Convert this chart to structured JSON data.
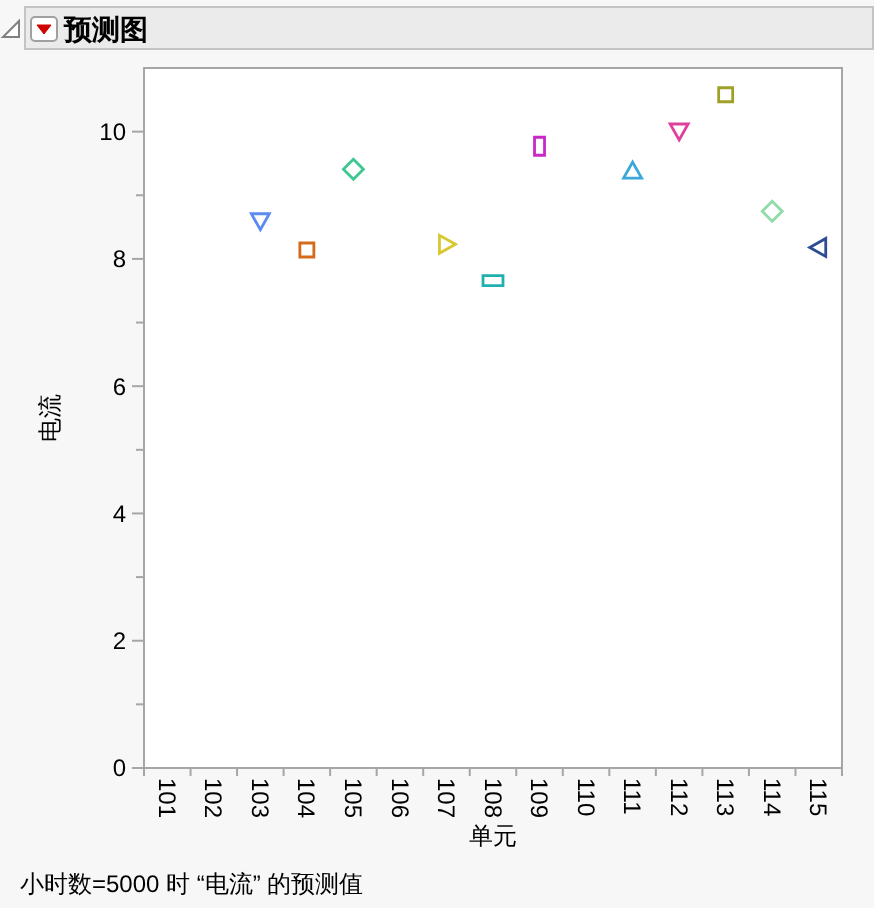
{
  "chart_data": {
    "type": "scatter",
    "title": "预测图",
    "xlabel": "单元",
    "ylabel": "电流",
    "categories": [
      "101",
      "102",
      "103",
      "104",
      "105",
      "106",
      "107",
      "108",
      "109",
      "110",
      "111",
      "112",
      "113",
      "114",
      "115"
    ],
    "ylim": [
      0,
      11
    ],
    "yticks": [
      0,
      {
        "value": 1,
        "label": null
      },
      2,
      {
        "value": 3,
        "label": null
      },
      4,
      {
        "value": 5,
        "label": null
      },
      6,
      {
        "value": 7,
        "label": null
      },
      8,
      {
        "value": 9,
        "label": null
      },
      10
    ],
    "series": [
      {
        "color": "#5a8cf0",
        "marker": "triangle-down",
        "values": [
          null,
          null,
          8.6,
          null,
          null,
          null,
          null,
          null,
          null,
          null,
          null,
          null,
          null,
          null,
          null
        ]
      },
      {
        "color": "#d46a1a",
        "marker": "square",
        "values": [
          null,
          null,
          null,
          8.14,
          null,
          null,
          null,
          null,
          null,
          null,
          null,
          null,
          null,
          null,
          null
        ]
      },
      {
        "color": "#3cc890",
        "marker": "diamond",
        "values": [
          null,
          null,
          null,
          null,
          9.41,
          null,
          null,
          null,
          null,
          null,
          null,
          null,
          null,
          null,
          null
        ]
      },
      {
        "color": "#d8c830",
        "marker": "triangle-right",
        "values": [
          null,
          null,
          null,
          null,
          null,
          null,
          8.23,
          null,
          null,
          null,
          null,
          null,
          null,
          null,
          null
        ]
      },
      {
        "color": "#20b0b0",
        "marker": "rect-wide",
        "values": [
          null,
          null,
          null,
          null,
          null,
          null,
          null,
          7.66,
          null,
          null,
          null,
          null,
          null,
          null,
          null
        ]
      },
      {
        "color": "#c828c8",
        "marker": "rect-tall",
        "values": [
          null,
          null,
          null,
          null,
          null,
          null,
          null,
          null,
          9.77,
          null,
          null,
          null,
          null,
          null,
          null
        ]
      },
      {
        "color": "#3aa8d8",
        "marker": "triangle",
        "values": [
          null,
          null,
          null,
          null,
          null,
          null,
          null,
          null,
          null,
          null,
          9.38,
          null,
          null,
          null,
          null
        ]
      },
      {
        "color": "#e0409c",
        "marker": "triangle-down",
        "values": [
          null,
          null,
          null,
          null,
          null,
          null,
          null,
          null,
          null,
          null,
          null,
          10.01,
          null,
          null,
          null
        ]
      },
      {
        "color": "#a0a028",
        "marker": "square",
        "values": [
          null,
          null,
          null,
          null,
          null,
          null,
          null,
          null,
          null,
          null,
          null,
          null,
          10.58,
          null,
          null
        ]
      },
      {
        "color": "#90dca8",
        "marker": "diamond",
        "values": [
          null,
          null,
          null,
          null,
          null,
          null,
          null,
          null,
          null,
          null,
          null,
          null,
          null,
          8.75,
          null
        ]
      },
      {
        "color": "#2c4c94",
        "marker": "triangle-left",
        "values": [
          null,
          null,
          null,
          null,
          null,
          null,
          null,
          null,
          null,
          null,
          null,
          null,
          null,
          null,
          8.18
        ]
      }
    ],
    "annotations": [
      "小时数=5000 时 “电流” 的预测值"
    ]
  }
}
